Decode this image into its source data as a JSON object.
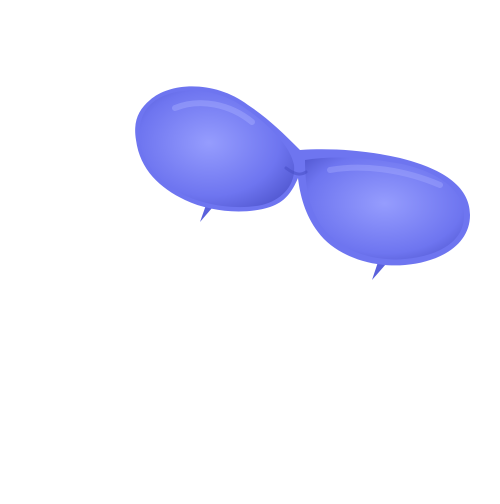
{
  "scene": {
    "subject": "sunglasses",
    "colors": {
      "background": "#ffffff",
      "lens_base": "#6e75f0",
      "lens_light": "#9aa1ff",
      "lens_dark": "#4a50c8",
      "temple_tip": "#5a61dc"
    }
  }
}
